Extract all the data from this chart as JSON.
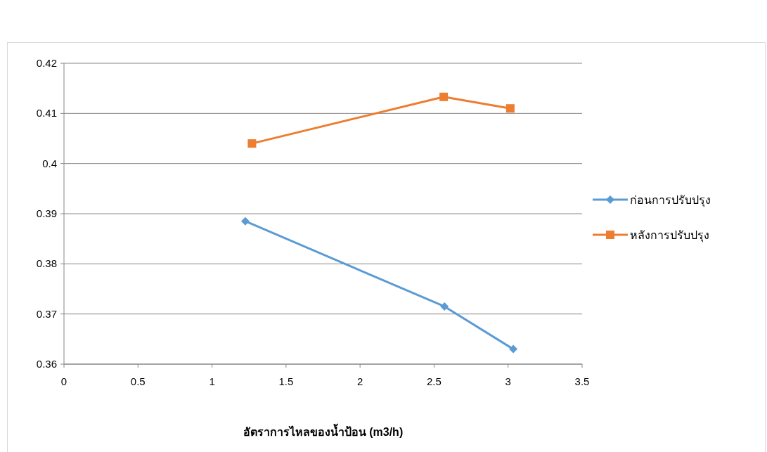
{
  "chart_data": {
    "type": "line",
    "xlabel": "อัตราการไหลของน้ำป้อน (m3/h)",
    "xlim": [
      0,
      3.5
    ],
    "xticks": [
      0,
      0.5,
      1,
      1.5,
      2,
      2.5,
      3,
      3.5
    ],
    "ylim": [
      0.36,
      0.42
    ],
    "yticks": [
      0.36,
      0.37,
      0.38,
      0.39,
      0.4,
      0.41,
      0.42
    ],
    "grid": "y",
    "legend": "right",
    "line_style": "solid",
    "series": [
      {
        "name": "ก่อนการปรับปรุง",
        "color": "#5b9bd5",
        "marker": "diamond",
        "x": [
          1.225,
          2.57,
          3.035
        ],
        "values": [
          0.3885,
          0.3715,
          0.363
        ]
      },
      {
        "name": "หลังการปรับปรุง",
        "color": "#ed7d31",
        "marker": "square",
        "x": [
          1.27,
          2.565,
          3.015
        ],
        "values": [
          0.404,
          0.4133,
          0.411
        ]
      }
    ]
  }
}
